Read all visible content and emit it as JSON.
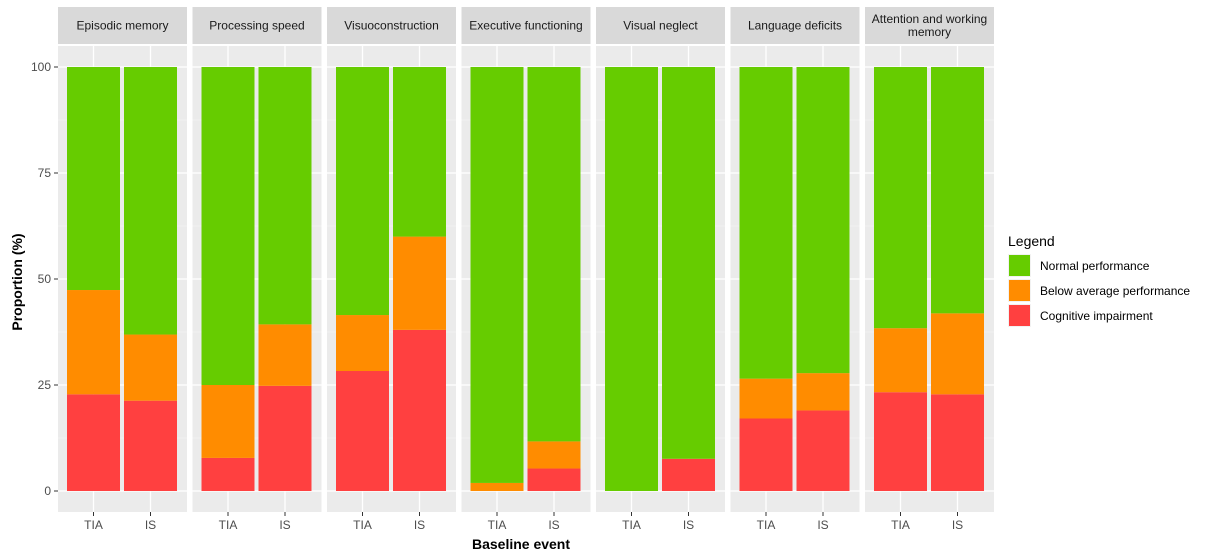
{
  "chart_data": {
    "type": "bar",
    "stacked": true,
    "facet": true,
    "xlabel": "Baseline event",
    "ylabel": "Proportion (%)",
    "ylim": [
      0,
      100
    ],
    "yticks": [
      0,
      25,
      50,
      75,
      100
    ],
    "categories": [
      "TIA",
      "IS"
    ],
    "legend": {
      "title": "Legend",
      "position": "right",
      "entries": [
        {
          "name": "Normal performance",
          "color": "#66CC00"
        },
        {
          "name": "Below average performance",
          "color": "#FF8C00"
        },
        {
          "name": "Cognitive impairment",
          "color": "#FF4040"
        }
      ]
    },
    "facets": [
      {
        "title": [
          "Episodic memory"
        ],
        "series": {
          "cognitive": [
            22.8,
            21.3
          ],
          "below": [
            24.6,
            15.6
          ],
          "normal": [
            52.6,
            63.1
          ]
        }
      },
      {
        "title": [
          "Processing speed"
        ],
        "series": {
          "cognitive": [
            7.8,
            24.8
          ],
          "below": [
            17.2,
            14.5
          ],
          "normal": [
            75.0,
            60.7
          ]
        }
      },
      {
        "title": [
          "Visuoconstruction"
        ],
        "series": {
          "cognitive": [
            28.3,
            38.0
          ],
          "below": [
            13.2,
            22.0
          ],
          "normal": [
            58.5,
            40.0
          ]
        }
      },
      {
        "title": [
          "Executive functioning"
        ],
        "series": {
          "cognitive": [
            0.0,
            5.3
          ],
          "below": [
            1.9,
            6.4
          ],
          "normal": [
            98.1,
            88.3
          ]
        }
      },
      {
        "title": [
          "Visual neglect"
        ],
        "series": {
          "cognitive": [
            0.0,
            7.6
          ],
          "below": [
            0.0,
            0.0
          ],
          "normal": [
            100.0,
            92.4
          ]
        }
      },
      {
        "title": [
          "Language deficits"
        ],
        "series": {
          "cognitive": [
            17.1,
            19.0
          ],
          "below": [
            9.4,
            8.8
          ],
          "normal": [
            73.5,
            72.2
          ]
        }
      },
      {
        "title": [
          "Attention and working",
          "memory"
        ],
        "series": {
          "cognitive": [
            23.3,
            22.8
          ],
          "below": [
            15.1,
            19.1
          ],
          "normal": [
            61.6,
            58.1
          ]
        }
      }
    ]
  }
}
